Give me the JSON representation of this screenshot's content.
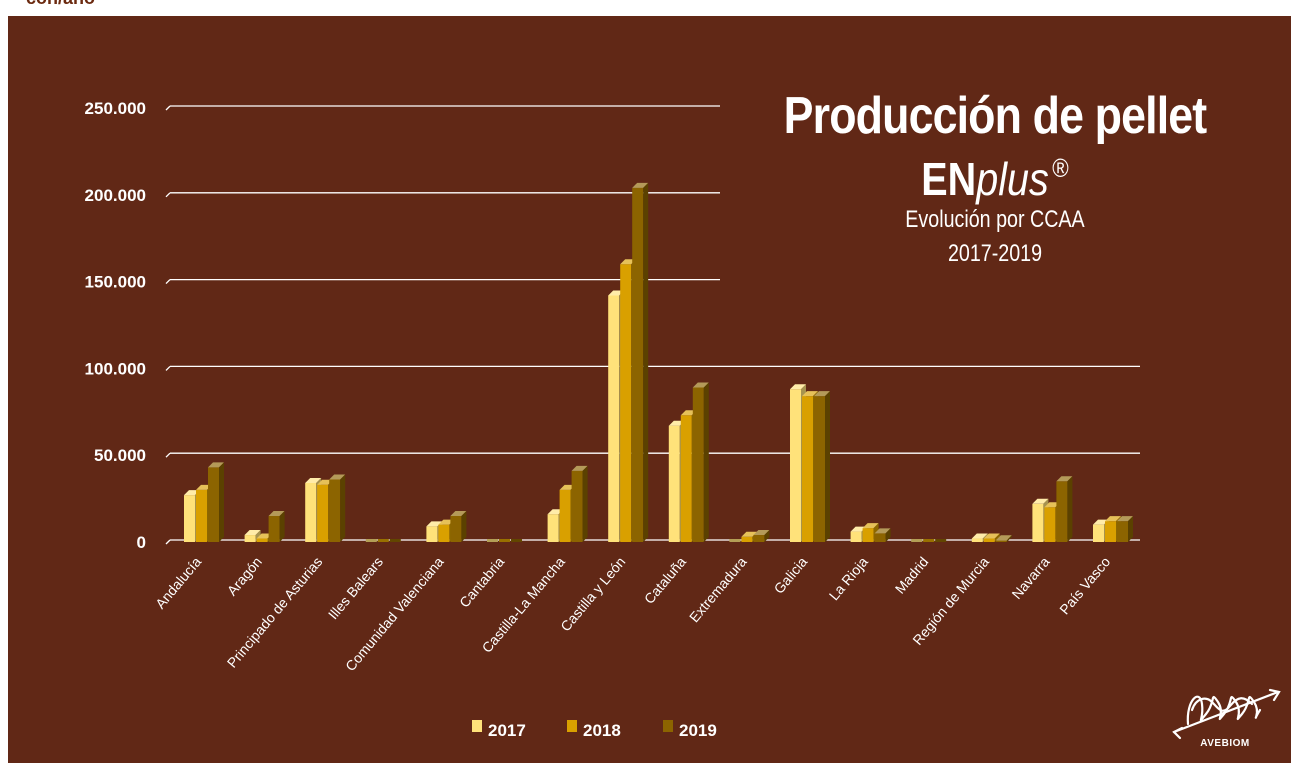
{
  "header": {
    "fragment": "con/año"
  },
  "title": {
    "main": "Producción de pellet",
    "brand_bold": "EN",
    "brand_italic": "plus",
    "brand_mark": "®",
    "subtitle_line1": "Evolución por CCAA",
    "subtitle_line2": "2017-2019"
  },
  "logo": {
    "text": "AVEBIOM",
    "icon": "avebiom-logo-icon"
  },
  "colors": {
    "background": "#612816",
    "gridline": "#ffffff",
    "text": "#ffffff"
  },
  "chart_data": {
    "type": "bar",
    "title": "Producción de pellet ENplus® Evolución por CCAA 2017-2019",
    "xlabel": "",
    "ylabel": "",
    "ylim": [
      0,
      250000
    ],
    "yticks": [
      0,
      50000,
      100000,
      150000,
      200000,
      250000
    ],
    "ytick_labels": [
      "0",
      "50.000",
      "100.000",
      "150.000",
      "200.000",
      "250.000"
    ],
    "grid": true,
    "legend_position": "bottom",
    "categories": [
      "Andalucía",
      "Aragón",
      "Principado de Asturias",
      "Illes Balears",
      "Comunidad Valenciana",
      "Cantabria",
      "Castilla-La Mancha",
      "Castilla y León",
      "Cataluña",
      "Extremadura",
      "Galicia",
      "La Rioja",
      "Madrid",
      "Región de Murcia",
      "Navarra",
      "País Vasco"
    ],
    "series": [
      {
        "name": "2017",
        "color": "#ffe27a",
        "values": [
          27000,
          4000,
          34000,
          0,
          9000,
          0,
          16000,
          142000,
          67000,
          0,
          88000,
          6000,
          0,
          2000,
          22000,
          10000
        ]
      },
      {
        "name": "2018",
        "color": "#d9a000",
        "values": [
          30000,
          2000,
          33000,
          0,
          10000,
          0,
          30000,
          160000,
          73000,
          3000,
          84000,
          8000,
          0,
          2000,
          20000,
          12000
        ]
      },
      {
        "name": "2019",
        "color": "#8c6400",
        "values": [
          43000,
          15000,
          36000,
          0,
          15000,
          0,
          41000,
          204000,
          89000,
          4000,
          84000,
          5000,
          0,
          1000,
          35000,
          12000
        ]
      }
    ]
  }
}
